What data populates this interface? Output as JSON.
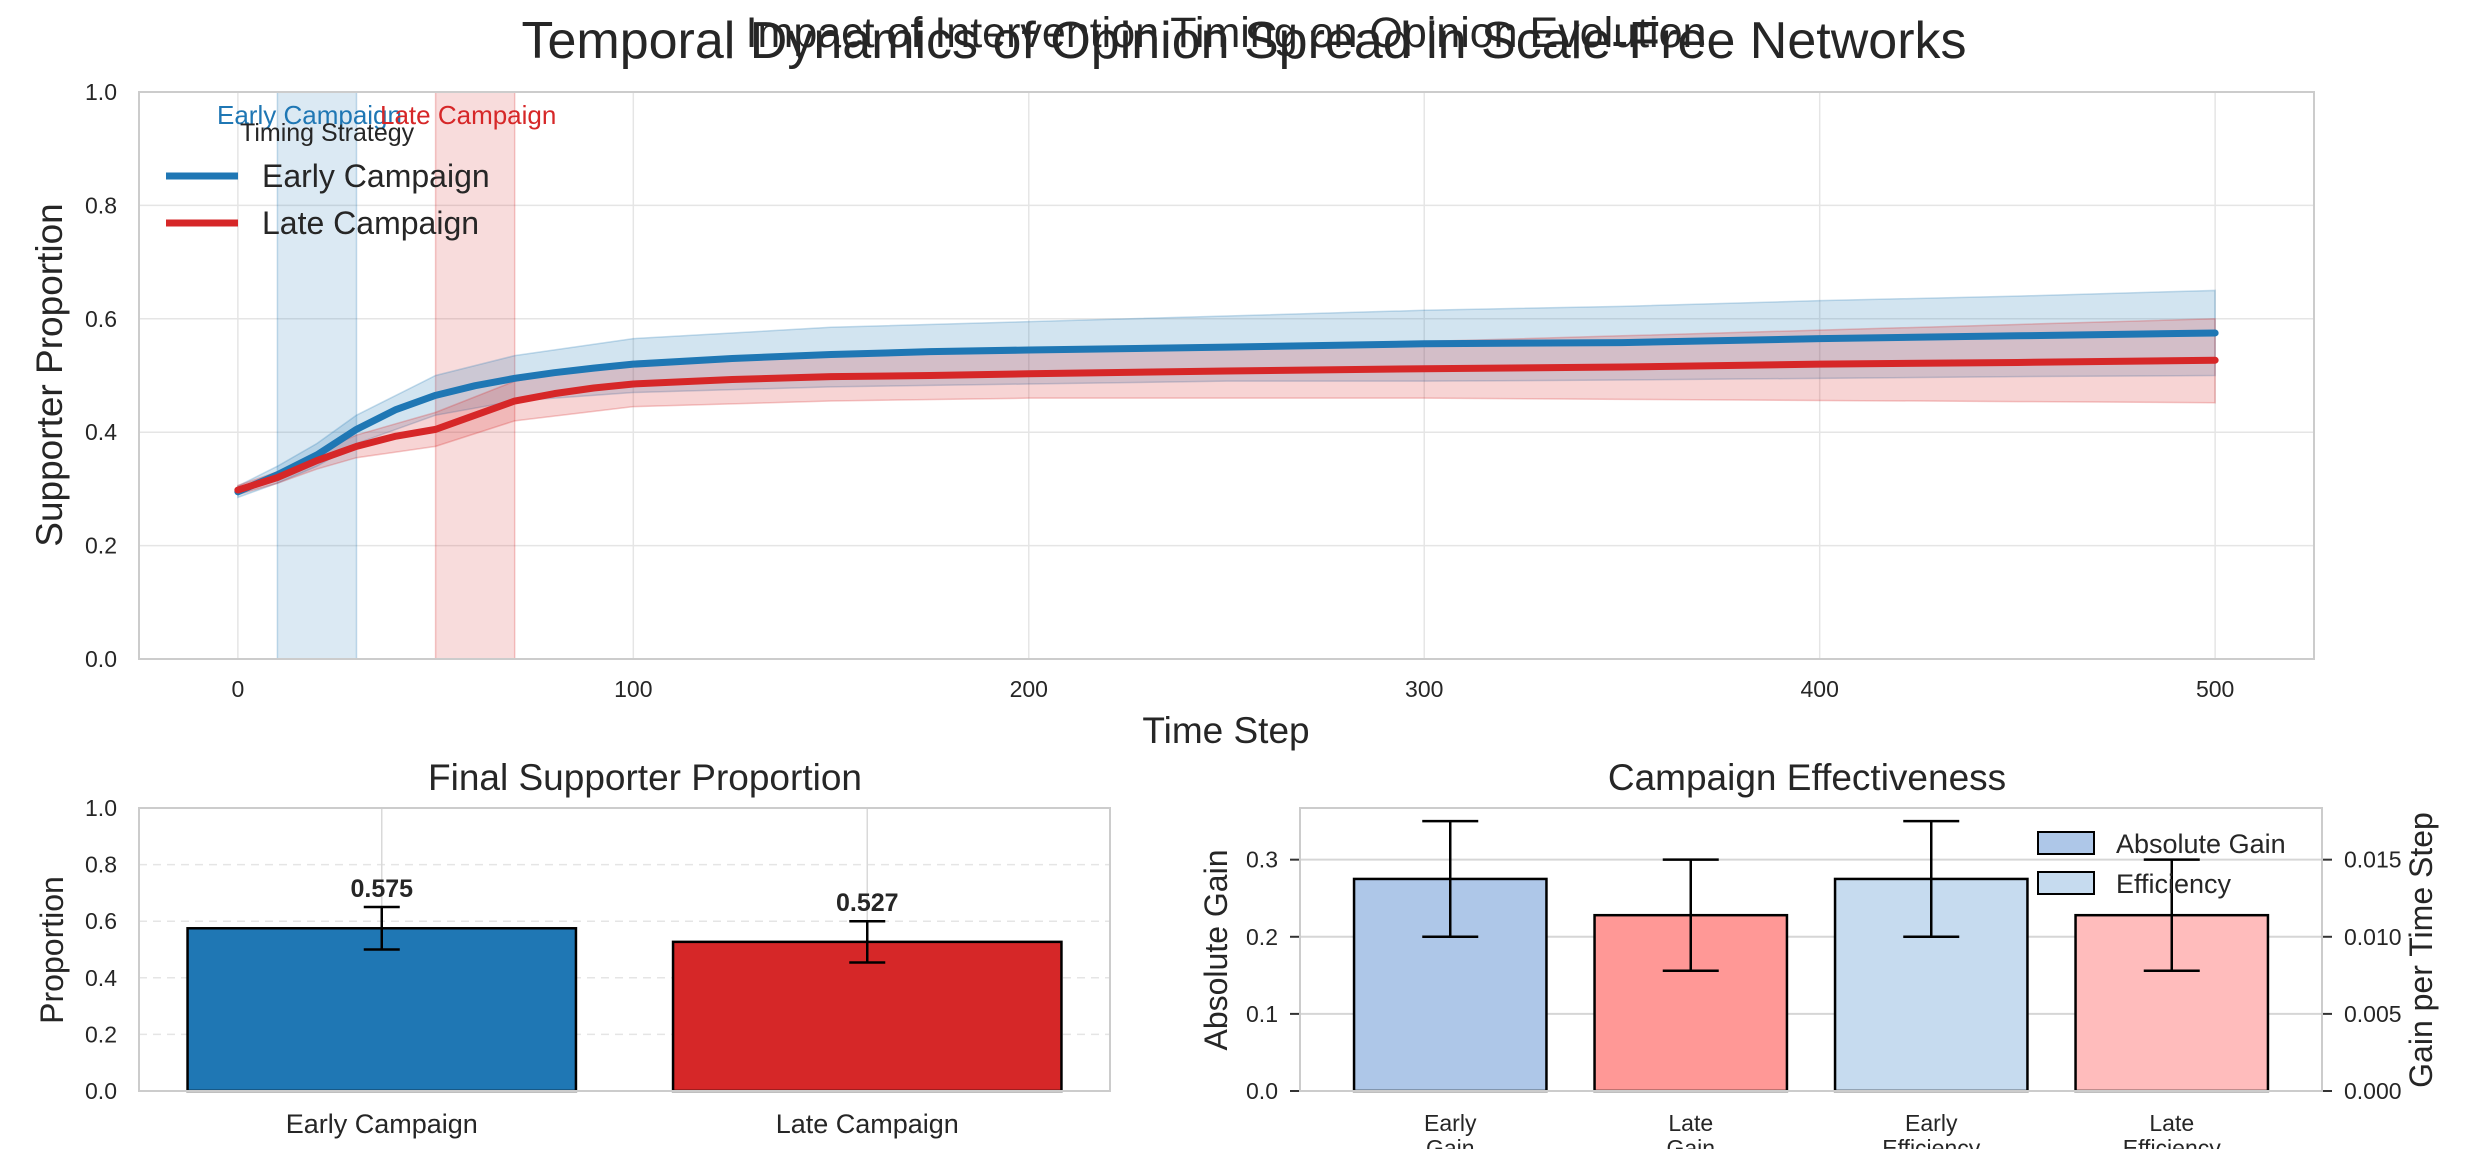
{
  "figure": {
    "title": "Temporal Dynamics of Opinion Spread in Scale-Free Networks",
    "overlapping_title": "Impact of Intervention Timing on Opinion Evolution"
  },
  "colors": {
    "early": "#1f77b4",
    "late": "#d62728",
    "early_gain": "#aec7e8",
    "late_gain": "#ff9896",
    "early_eff": "#c6dbef",
    "late_eff": "#ffbcbc",
    "grid": "#e5e5e5",
    "axes": "#cccccc"
  },
  "chart_data": [
    {
      "type": "line",
      "xlabel": "Time Step",
      "ylabel": "Supporter Proportion",
      "xlim": [
        -25,
        525
      ],
      "ylim": [
        0,
        1
      ],
      "xticks": [
        0,
        100,
        200,
        300,
        400,
        500
      ],
      "yticks": [
        "0.0",
        "0.2",
        "0.4",
        "0.6",
        "0.8",
        "1.0"
      ],
      "grid": true,
      "legend": {
        "title": "Timing Strategy",
        "placement": "top-left"
      },
      "intervention_windows": [
        {
          "label": "Early Campaign",
          "start": 10,
          "end": 30
        },
        {
          "label": "Late Campaign",
          "start": 50,
          "end": 70
        }
      ],
      "series": [
        {
          "name": "Early Campaign",
          "points": [
            [
              0,
              0.295
            ],
            [
              10,
              0.325
            ],
            [
              20,
              0.36
            ],
            [
              30,
              0.405
            ],
            [
              40,
              0.44
            ],
            [
              50,
              0.465
            ],
            [
              60,
              0.482
            ],
            [
              70,
              0.495
            ],
            [
              80,
              0.505
            ],
            [
              90,
              0.513
            ],
            [
              100,
              0.52
            ],
            [
              125,
              0.53
            ],
            [
              150,
              0.537
            ],
            [
              175,
              0.542
            ],
            [
              200,
              0.545
            ],
            [
              250,
              0.55
            ],
            [
              300,
              0.556
            ],
            [
              350,
              0.558
            ],
            [
              400,
              0.565
            ],
            [
              450,
              0.57
            ],
            [
              500,
              0.575
            ]
          ],
          "band_low": [
            [
              0,
              0.285
            ],
            [
              10,
              0.31
            ],
            [
              20,
              0.34
            ],
            [
              30,
              0.38
            ],
            [
              50,
              0.43
            ],
            [
              70,
              0.455
            ],
            [
              100,
              0.47
            ],
            [
              150,
              0.48
            ],
            [
              200,
              0.485
            ],
            [
              250,
              0.49
            ],
            [
              300,
              0.49
            ],
            [
              350,
              0.492
            ],
            [
              400,
              0.495
            ],
            [
              450,
              0.498
            ],
            [
              500,
              0.5
            ]
          ],
          "band_high": [
            [
              0,
              0.305
            ],
            [
              10,
              0.34
            ],
            [
              20,
              0.38
            ],
            [
              30,
              0.43
            ],
            [
              50,
              0.5
            ],
            [
              70,
              0.535
            ],
            [
              100,
              0.565
            ],
            [
              150,
              0.585
            ],
            [
              200,
              0.595
            ],
            [
              250,
              0.605
            ],
            [
              300,
              0.615
            ],
            [
              350,
              0.622
            ],
            [
              400,
              0.632
            ],
            [
              450,
              0.64
            ],
            [
              500,
              0.65
            ]
          ]
        },
        {
          "name": "Late Campaign",
          "points": [
            [
              0,
              0.298
            ],
            [
              10,
              0.32
            ],
            [
              20,
              0.35
            ],
            [
              30,
              0.375
            ],
            [
              40,
              0.393
            ],
            [
              50,
              0.405
            ],
            [
              60,
              0.43
            ],
            [
              70,
              0.455
            ],
            [
              80,
              0.468
            ],
            [
              90,
              0.478
            ],
            [
              100,
              0.485
            ],
            [
              125,
              0.493
            ],
            [
              150,
              0.498
            ],
            [
              175,
              0.5
            ],
            [
              200,
              0.503
            ],
            [
              250,
              0.508
            ],
            [
              300,
              0.512
            ],
            [
              350,
              0.515
            ],
            [
              400,
              0.52
            ],
            [
              450,
              0.523
            ],
            [
              500,
              0.527
            ]
          ],
          "band_low": [
            [
              0,
              0.29
            ],
            [
              10,
              0.31
            ],
            [
              20,
              0.335
            ],
            [
              30,
              0.355
            ],
            [
              50,
              0.375
            ],
            [
              70,
              0.42
            ],
            [
              100,
              0.445
            ],
            [
              150,
              0.455
            ],
            [
              200,
              0.46
            ],
            [
              250,
              0.46
            ],
            [
              300,
              0.46
            ],
            [
              350,
              0.458
            ],
            [
              400,
              0.456
            ],
            [
              450,
              0.454
            ],
            [
              500,
              0.452
            ]
          ],
          "band_high": [
            [
              0,
              0.306
            ],
            [
              10,
              0.33
            ],
            [
              20,
              0.365
            ],
            [
              30,
              0.395
            ],
            [
              50,
              0.435
            ],
            [
              70,
              0.49
            ],
            [
              100,
              0.525
            ],
            [
              150,
              0.54
            ],
            [
              200,
              0.545
            ],
            [
              250,
              0.552
            ],
            [
              300,
              0.56
            ],
            [
              350,
              0.57
            ],
            [
              400,
              0.58
            ],
            [
              450,
              0.59
            ],
            [
              500,
              0.6
            ]
          ]
        }
      ]
    },
    {
      "type": "bar",
      "title": "Final Supporter Proportion",
      "ylabel": "Proportion",
      "ylim": [
        0,
        1
      ],
      "yticks": [
        "0.0",
        "0.2",
        "0.4",
        "0.6",
        "0.8",
        "1.0"
      ],
      "categories": [
        "Early Campaign",
        "Late Campaign"
      ],
      "values": [
        0.575,
        0.527
      ],
      "errors": [
        0.075,
        0.073
      ],
      "data_labels": [
        "0.575",
        "0.527"
      ]
    },
    {
      "type": "bar",
      "title": "Campaign Effectiveness",
      "ylabel": "Absolute Gain",
      "ylabel_right": "Gain per Time Step",
      "ylim": [
        0,
        0.367
      ],
      "ylim_right": [
        0,
        0.01835
      ],
      "yticks": [
        "0.0",
        "0.1",
        "0.2",
        "0.3"
      ],
      "yticks_right": [
        "0.000",
        "0.005",
        "0.010",
        "0.015"
      ],
      "categories": [
        "Early\nGain",
        "Late\nGain",
        "Early\nEfficiency",
        "Late\nEfficiency"
      ],
      "values": [
        0.275,
        0.228,
        0.01375,
        0.0114
      ],
      "errors": [
        0.075,
        0.072,
        0.00375,
        0.0036
      ],
      "axis": [
        "left",
        "left",
        "right",
        "right"
      ],
      "legend": {
        "entries": [
          "Absolute Gain",
          "Efficiency"
        ],
        "placement": "top-right"
      }
    }
  ]
}
